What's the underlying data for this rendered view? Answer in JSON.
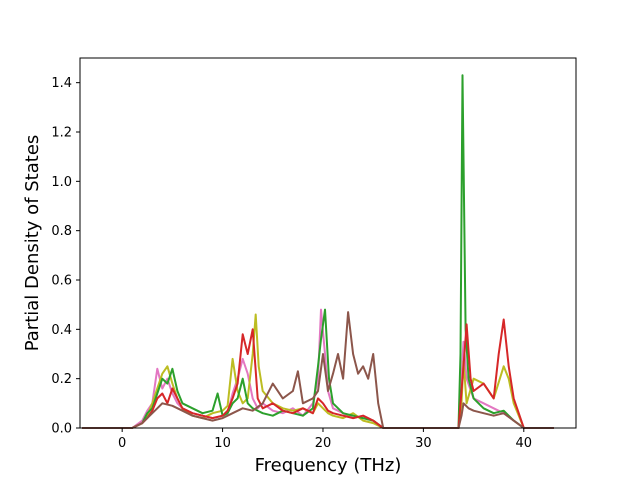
{
  "chart_data": {
    "type": "line",
    "title": "",
    "xlabel": "Frequency (THz)",
    "ylabel": "Partial Density of States",
    "xlim": [
      -4.2,
      45.2
    ],
    "ylim": [
      0.0,
      1.5
    ],
    "xticks": [
      0,
      10,
      20,
      30,
      40
    ],
    "xtick_labels": [
      "0",
      "10",
      "20",
      "30",
      "40"
    ],
    "yticks": [
      0.0,
      0.2,
      0.4,
      0.6,
      0.8,
      1.0,
      1.2,
      1.4
    ],
    "ytick_labels": [
      "0.0",
      "0.2",
      "0.4",
      "0.6",
      "0.8",
      "1.0",
      "1.2",
      "1.4"
    ],
    "grid": false,
    "legend": "none",
    "series": [
      {
        "color": "#e377c2",
        "points": [
          [
            -4,
            0
          ],
          [
            1,
            0
          ],
          [
            2,
            0.03
          ],
          [
            2.5,
            0.07
          ],
          [
            3,
            0.1
          ],
          [
            3.5,
            0.24
          ],
          [
            4,
            0.16
          ],
          [
            4.5,
            0.2
          ],
          [
            5,
            0.14
          ],
          [
            5.5,
            0.1
          ],
          [
            6,
            0.08
          ],
          [
            7,
            0.06
          ],
          [
            8,
            0.05
          ],
          [
            9,
            0.04
          ],
          [
            10,
            0.05
          ],
          [
            10.5,
            0.06
          ],
          [
            11,
            0.14
          ],
          [
            11.5,
            0.2
          ],
          [
            12,
            0.28
          ],
          [
            12.5,
            0.22
          ],
          [
            13,
            0.12
          ],
          [
            13.5,
            0.08
          ],
          [
            14,
            0.1
          ],
          [
            15,
            0.07
          ],
          [
            16,
            0.06
          ],
          [
            17,
            0.08
          ],
          [
            18,
            0.05
          ],
          [
            19,
            0.1
          ],
          [
            19.5,
            0.2
          ],
          [
            19.8,
            0.48
          ],
          [
            20.2,
            0.3
          ],
          [
            20.5,
            0.15
          ],
          [
            21,
            0.08
          ],
          [
            22,
            0.06
          ],
          [
            23,
            0.04
          ],
          [
            24,
            0.05
          ],
          [
            25,
            0.03
          ],
          [
            26,
            0
          ],
          [
            33.5,
            0
          ],
          [
            33.8,
            0.2
          ],
          [
            34,
            0.35
          ],
          [
            34.3,
            0.2
          ],
          [
            35,
            0.12
          ],
          [
            36,
            0.1
          ],
          [
            37,
            0.08
          ],
          [
            38,
            0.06
          ],
          [
            39,
            0.03
          ],
          [
            40,
            0
          ],
          [
            43,
            0
          ]
        ]
      },
      {
        "color": "#bcbd22",
        "points": [
          [
            -4,
            0
          ],
          [
            1,
            0
          ],
          [
            2,
            0.02
          ],
          [
            2.5,
            0.05
          ],
          [
            3,
            0.1
          ],
          [
            3.5,
            0.16
          ],
          [
            4,
            0.22
          ],
          [
            4.5,
            0.25
          ],
          [
            5,
            0.18
          ],
          [
            5.5,
            0.12
          ],
          [
            6,
            0.08
          ],
          [
            7,
            0.05
          ],
          [
            8,
            0.04
          ],
          [
            9,
            0.06
          ],
          [
            10,
            0.07
          ],
          [
            10.5,
            0.09
          ],
          [
            11,
            0.28
          ],
          [
            11.5,
            0.15
          ],
          [
            12,
            0.1
          ],
          [
            12.5,
            0.12
          ],
          [
            13,
            0.3
          ],
          [
            13.3,
            0.46
          ],
          [
            13.6,
            0.25
          ],
          [
            14,
            0.15
          ],
          [
            15,
            0.1
          ],
          [
            16,
            0.08
          ],
          [
            17,
            0.07
          ],
          [
            18,
            0.08
          ],
          [
            19,
            0.06
          ],
          [
            19.5,
            0.1
          ],
          [
            20,
            0.08
          ],
          [
            20.5,
            0.06
          ],
          [
            21,
            0.05
          ],
          [
            22,
            0.04
          ],
          [
            23,
            0.06
          ],
          [
            24,
            0.03
          ],
          [
            25,
            0.02
          ],
          [
            26,
            0
          ],
          [
            33.5,
            0
          ],
          [
            33.8,
            0.1
          ],
          [
            34,
            0.27
          ],
          [
            34.3,
            0.1
          ],
          [
            35,
            0.2
          ],
          [
            36,
            0.18
          ],
          [
            37,
            0.12
          ],
          [
            38,
            0.25
          ],
          [
            38.5,
            0.2
          ],
          [
            39,
            0.1
          ],
          [
            40,
            0
          ],
          [
            43,
            0
          ]
        ]
      },
      {
        "color": "#2ca02c",
        "points": [
          [
            -4,
            0
          ],
          [
            1,
            0
          ],
          [
            2,
            0.02
          ],
          [
            2.5,
            0.06
          ],
          [
            3,
            0.08
          ],
          [
            3.5,
            0.14
          ],
          [
            4,
            0.2
          ],
          [
            4.5,
            0.18
          ],
          [
            5,
            0.24
          ],
          [
            5.5,
            0.15
          ],
          [
            6,
            0.1
          ],
          [
            7,
            0.08
          ],
          [
            8,
            0.06
          ],
          [
            9,
            0.07
          ],
          [
            9.5,
            0.14
          ],
          [
            10,
            0.05
          ],
          [
            10.5,
            0.06
          ],
          [
            11,
            0.1
          ],
          [
            11.5,
            0.12
          ],
          [
            12,
            0.2
          ],
          [
            12.5,
            0.1
          ],
          [
            13,
            0.08
          ],
          [
            14,
            0.06
          ],
          [
            15,
            0.05
          ],
          [
            16,
            0.07
          ],
          [
            17,
            0.06
          ],
          [
            18,
            0.05
          ],
          [
            19,
            0.08
          ],
          [
            19.5,
            0.25
          ],
          [
            19.8,
            0.36
          ],
          [
            20.2,
            0.48
          ],
          [
            20.6,
            0.2
          ],
          [
            21,
            0.1
          ],
          [
            22,
            0.06
          ],
          [
            23,
            0.05
          ],
          [
            24,
            0.04
          ],
          [
            25,
            0.03
          ],
          [
            26,
            0
          ],
          [
            33.5,
            0
          ],
          [
            33.7,
            0.3
          ],
          [
            33.9,
            1.43
          ],
          [
            34.2,
            0.4
          ],
          [
            34.5,
            0.2
          ],
          [
            35,
            0.12
          ],
          [
            36,
            0.08
          ],
          [
            37,
            0.06
          ],
          [
            38,
            0.07
          ],
          [
            38.5,
            0.05
          ],
          [
            39,
            0.03
          ],
          [
            40,
            0
          ],
          [
            43,
            0
          ]
        ]
      },
      {
        "color": "#d62728",
        "points": [
          [
            -4,
            0
          ],
          [
            1,
            0
          ],
          [
            2,
            0.02
          ],
          [
            2.5,
            0.04
          ],
          [
            3,
            0.07
          ],
          [
            3.5,
            0.12
          ],
          [
            4,
            0.14
          ],
          [
            4.5,
            0.1
          ],
          [
            5,
            0.16
          ],
          [
            5.5,
            0.12
          ],
          [
            6,
            0.08
          ],
          [
            7,
            0.06
          ],
          [
            8,
            0.05
          ],
          [
            9,
            0.04
          ],
          [
            10,
            0.05
          ],
          [
            10.5,
            0.07
          ],
          [
            11,
            0.12
          ],
          [
            11.5,
            0.18
          ],
          [
            12,
            0.38
          ],
          [
            12.5,
            0.3
          ],
          [
            13,
            0.4
          ],
          [
            13.5,
            0.12
          ],
          [
            14,
            0.08
          ],
          [
            15,
            0.1
          ],
          [
            16,
            0.07
          ],
          [
            17,
            0.06
          ],
          [
            18,
            0.08
          ],
          [
            19,
            0.06
          ],
          [
            19.5,
            0.12
          ],
          [
            20,
            0.1
          ],
          [
            20.5,
            0.07
          ],
          [
            21,
            0.06
          ],
          [
            22,
            0.05
          ],
          [
            23,
            0.04
          ],
          [
            24,
            0.05
          ],
          [
            25,
            0.03
          ],
          [
            26,
            0
          ],
          [
            33.5,
            0
          ],
          [
            33.8,
            0.15
          ],
          [
            34,
            0.25
          ],
          [
            34.3,
            0.42
          ],
          [
            34.7,
            0.2
          ],
          [
            35,
            0.15
          ],
          [
            36,
            0.18
          ],
          [
            37,
            0.12
          ],
          [
            37.5,
            0.3
          ],
          [
            38,
            0.44
          ],
          [
            38.5,
            0.25
          ],
          [
            39,
            0.12
          ],
          [
            40,
            0
          ],
          [
            43,
            0
          ]
        ]
      },
      {
        "color": "#8c564b",
        "points": [
          [
            -4,
            0
          ],
          [
            1,
            0
          ],
          [
            2,
            0.02
          ],
          [
            2.5,
            0.04
          ],
          [
            3,
            0.06
          ],
          [
            3.5,
            0.08
          ],
          [
            4,
            0.1
          ],
          [
            5,
            0.09
          ],
          [
            6,
            0.07
          ],
          [
            7,
            0.05
          ],
          [
            8,
            0.04
          ],
          [
            9,
            0.03
          ],
          [
            10,
            0.04
          ],
          [
            11,
            0.06
          ],
          [
            12,
            0.08
          ],
          [
            13,
            0.07
          ],
          [
            14,
            0.1
          ],
          [
            15,
            0.18
          ],
          [
            16,
            0.12
          ],
          [
            17,
            0.15
          ],
          [
            17.5,
            0.23
          ],
          [
            18,
            0.1
          ],
          [
            19,
            0.12
          ],
          [
            19.5,
            0.15
          ],
          [
            20,
            0.3
          ],
          [
            20.5,
            0.15
          ],
          [
            21,
            0.22
          ],
          [
            21.5,
            0.3
          ],
          [
            22,
            0.2
          ],
          [
            22.5,
            0.47
          ],
          [
            23,
            0.3
          ],
          [
            23.5,
            0.22
          ],
          [
            24,
            0.25
          ],
          [
            24.5,
            0.2
          ],
          [
            25,
            0.3
          ],
          [
            25.5,
            0.1
          ],
          [
            26,
            0
          ],
          [
            33.5,
            0
          ],
          [
            33.8,
            0.05
          ],
          [
            34,
            0.1
          ],
          [
            34.5,
            0.08
          ],
          [
            35,
            0.07
          ],
          [
            36,
            0.06
          ],
          [
            37,
            0.05
          ],
          [
            38,
            0.06
          ],
          [
            39,
            0.03
          ],
          [
            40,
            0
          ],
          [
            43,
            0
          ]
        ]
      }
    ]
  }
}
